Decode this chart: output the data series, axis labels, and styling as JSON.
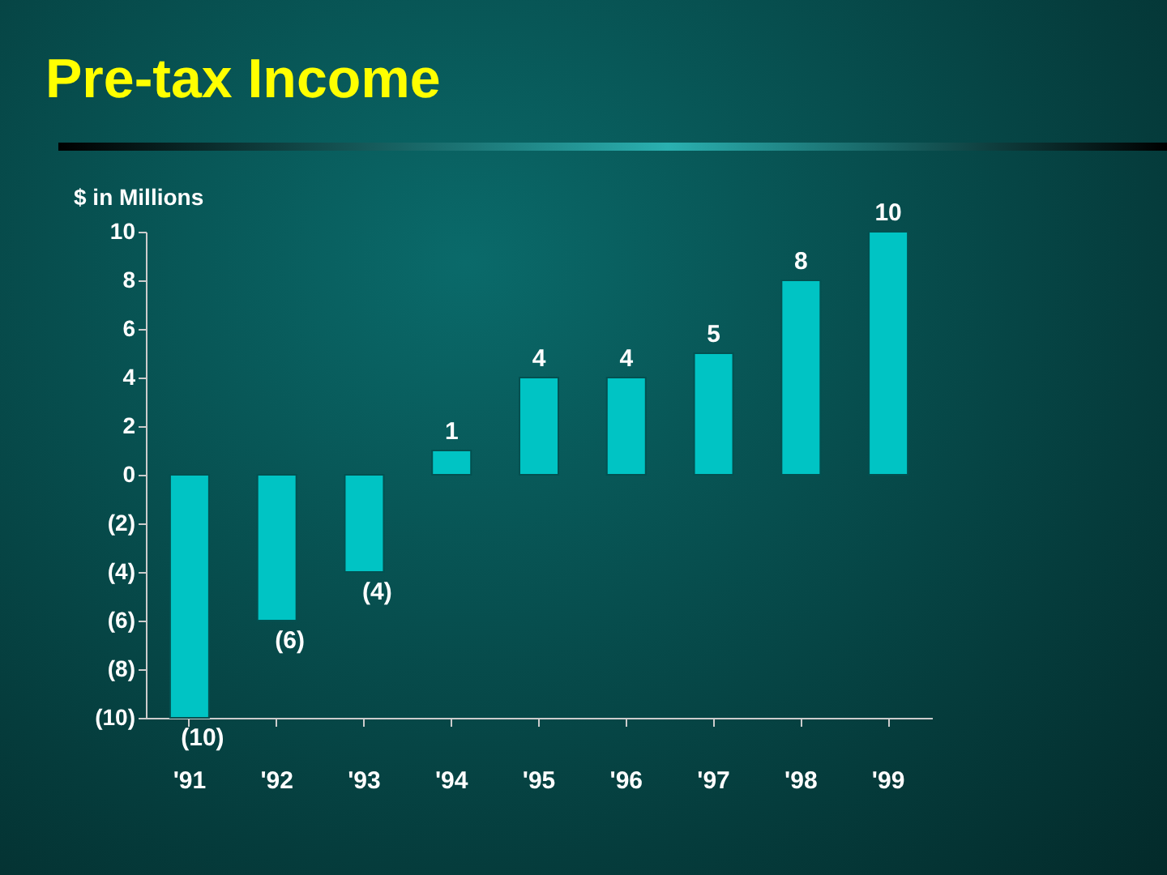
{
  "chart_data": {
    "type": "bar",
    "title": "Pre-tax Income",
    "ylabel": "$ in Millions",
    "categories": [
      "'91",
      "'92",
      "'93",
      "'94",
      "'95",
      "'96",
      "'97",
      "'98",
      "'99"
    ],
    "values": [
      -10,
      -6,
      -4,
      1,
      4,
      4,
      5,
      8,
      10
    ],
    "value_labels": [
      "(10)",
      "(6)",
      "(4)",
      "1",
      "4",
      "4",
      "5",
      "8",
      "10"
    ],
    "color": "#00c4c4",
    "ylim": [
      -10,
      10
    ],
    "yticks": [
      {
        "value": -10,
        "label": "(10)"
      },
      {
        "value": -8,
        "label": "(8)"
      },
      {
        "value": -6,
        "label": "(6)"
      },
      {
        "value": -4,
        "label": "(4)"
      },
      {
        "value": -2,
        "label": "(2)"
      },
      0,
      2,
      4,
      6,
      8,
      10
    ],
    "grid": false
  }
}
